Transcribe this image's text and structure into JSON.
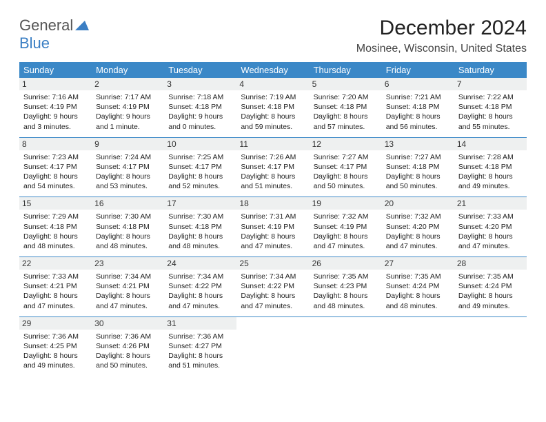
{
  "logo": {
    "text1": "General",
    "text2": "Blue"
  },
  "title": "December 2024",
  "location": "Mosinee, Wisconsin, United States",
  "colors": {
    "header_bg": "#3b88c7",
    "header_text": "#ffffff",
    "daynum_bg": "#eef0f0",
    "row_border": "#3b88c7",
    "logo_gray": "#555555",
    "logo_blue": "#3b7fc4",
    "body_text": "#222222"
  },
  "day_headers": [
    "Sunday",
    "Monday",
    "Tuesday",
    "Wednesday",
    "Thursday",
    "Friday",
    "Saturday"
  ],
  "weeks": [
    [
      {
        "n": "1",
        "sr": "Sunrise: 7:16 AM",
        "ss": "Sunset: 4:19 PM",
        "dl": "Daylight: 9 hours and 3 minutes."
      },
      {
        "n": "2",
        "sr": "Sunrise: 7:17 AM",
        "ss": "Sunset: 4:19 PM",
        "dl": "Daylight: 9 hours and 1 minute."
      },
      {
        "n": "3",
        "sr": "Sunrise: 7:18 AM",
        "ss": "Sunset: 4:18 PM",
        "dl": "Daylight: 9 hours and 0 minutes."
      },
      {
        "n": "4",
        "sr": "Sunrise: 7:19 AM",
        "ss": "Sunset: 4:18 PM",
        "dl": "Daylight: 8 hours and 59 minutes."
      },
      {
        "n": "5",
        "sr": "Sunrise: 7:20 AM",
        "ss": "Sunset: 4:18 PM",
        "dl": "Daylight: 8 hours and 57 minutes."
      },
      {
        "n": "6",
        "sr": "Sunrise: 7:21 AM",
        "ss": "Sunset: 4:18 PM",
        "dl": "Daylight: 8 hours and 56 minutes."
      },
      {
        "n": "7",
        "sr": "Sunrise: 7:22 AM",
        "ss": "Sunset: 4:18 PM",
        "dl": "Daylight: 8 hours and 55 minutes."
      }
    ],
    [
      {
        "n": "8",
        "sr": "Sunrise: 7:23 AM",
        "ss": "Sunset: 4:17 PM",
        "dl": "Daylight: 8 hours and 54 minutes."
      },
      {
        "n": "9",
        "sr": "Sunrise: 7:24 AM",
        "ss": "Sunset: 4:17 PM",
        "dl": "Daylight: 8 hours and 53 minutes."
      },
      {
        "n": "10",
        "sr": "Sunrise: 7:25 AM",
        "ss": "Sunset: 4:17 PM",
        "dl": "Daylight: 8 hours and 52 minutes."
      },
      {
        "n": "11",
        "sr": "Sunrise: 7:26 AM",
        "ss": "Sunset: 4:17 PM",
        "dl": "Daylight: 8 hours and 51 minutes."
      },
      {
        "n": "12",
        "sr": "Sunrise: 7:27 AM",
        "ss": "Sunset: 4:17 PM",
        "dl": "Daylight: 8 hours and 50 minutes."
      },
      {
        "n": "13",
        "sr": "Sunrise: 7:27 AM",
        "ss": "Sunset: 4:18 PM",
        "dl": "Daylight: 8 hours and 50 minutes."
      },
      {
        "n": "14",
        "sr": "Sunrise: 7:28 AM",
        "ss": "Sunset: 4:18 PM",
        "dl": "Daylight: 8 hours and 49 minutes."
      }
    ],
    [
      {
        "n": "15",
        "sr": "Sunrise: 7:29 AM",
        "ss": "Sunset: 4:18 PM",
        "dl": "Daylight: 8 hours and 48 minutes."
      },
      {
        "n": "16",
        "sr": "Sunrise: 7:30 AM",
        "ss": "Sunset: 4:18 PM",
        "dl": "Daylight: 8 hours and 48 minutes."
      },
      {
        "n": "17",
        "sr": "Sunrise: 7:30 AM",
        "ss": "Sunset: 4:18 PM",
        "dl": "Daylight: 8 hours and 48 minutes."
      },
      {
        "n": "18",
        "sr": "Sunrise: 7:31 AM",
        "ss": "Sunset: 4:19 PM",
        "dl": "Daylight: 8 hours and 47 minutes."
      },
      {
        "n": "19",
        "sr": "Sunrise: 7:32 AM",
        "ss": "Sunset: 4:19 PM",
        "dl": "Daylight: 8 hours and 47 minutes."
      },
      {
        "n": "20",
        "sr": "Sunrise: 7:32 AM",
        "ss": "Sunset: 4:20 PM",
        "dl": "Daylight: 8 hours and 47 minutes."
      },
      {
        "n": "21",
        "sr": "Sunrise: 7:33 AM",
        "ss": "Sunset: 4:20 PM",
        "dl": "Daylight: 8 hours and 47 minutes."
      }
    ],
    [
      {
        "n": "22",
        "sr": "Sunrise: 7:33 AM",
        "ss": "Sunset: 4:21 PM",
        "dl": "Daylight: 8 hours and 47 minutes."
      },
      {
        "n": "23",
        "sr": "Sunrise: 7:34 AM",
        "ss": "Sunset: 4:21 PM",
        "dl": "Daylight: 8 hours and 47 minutes."
      },
      {
        "n": "24",
        "sr": "Sunrise: 7:34 AM",
        "ss": "Sunset: 4:22 PM",
        "dl": "Daylight: 8 hours and 47 minutes."
      },
      {
        "n": "25",
        "sr": "Sunrise: 7:34 AM",
        "ss": "Sunset: 4:22 PM",
        "dl": "Daylight: 8 hours and 47 minutes."
      },
      {
        "n": "26",
        "sr": "Sunrise: 7:35 AM",
        "ss": "Sunset: 4:23 PM",
        "dl": "Daylight: 8 hours and 48 minutes."
      },
      {
        "n": "27",
        "sr": "Sunrise: 7:35 AM",
        "ss": "Sunset: 4:24 PM",
        "dl": "Daylight: 8 hours and 48 minutes."
      },
      {
        "n": "28",
        "sr": "Sunrise: 7:35 AM",
        "ss": "Sunset: 4:24 PM",
        "dl": "Daylight: 8 hours and 49 minutes."
      }
    ],
    [
      {
        "n": "29",
        "sr": "Sunrise: 7:36 AM",
        "ss": "Sunset: 4:25 PM",
        "dl": "Daylight: 8 hours and 49 minutes."
      },
      {
        "n": "30",
        "sr": "Sunrise: 7:36 AM",
        "ss": "Sunset: 4:26 PM",
        "dl": "Daylight: 8 hours and 50 minutes."
      },
      {
        "n": "31",
        "sr": "Sunrise: 7:36 AM",
        "ss": "Sunset: 4:27 PM",
        "dl": "Daylight: 8 hours and 51 minutes."
      },
      null,
      null,
      null,
      null
    ]
  ]
}
